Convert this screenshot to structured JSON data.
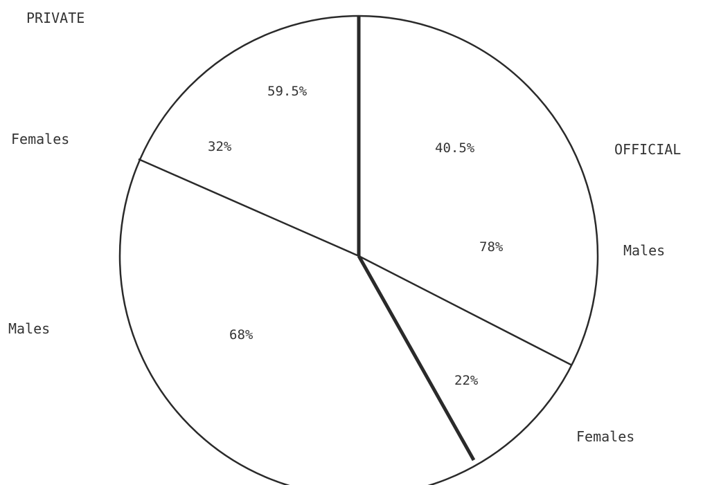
{
  "chart_data": {
    "type": "pie",
    "title": "",
    "sectors": [
      {
        "name": "OFFICIAL",
        "share_label": "40.5%",
        "value": 40.5,
        "subgroups": [
          {
            "name": "Males",
            "label": "78%",
            "value": 78
          },
          {
            "name": "Females",
            "label": "22%",
            "value": 22
          }
        ]
      },
      {
        "name": "PRIVATE",
        "share_label": "59.5%",
        "value": 59.5,
        "subgroups": [
          {
            "name": "Males",
            "label": "68%",
            "value": 68
          },
          {
            "name": "Females",
            "label": "32%",
            "value": 32
          }
        ]
      }
    ]
  },
  "colors": {
    "line": "#2a2a2a",
    "text": "#333333",
    "background": "#ffffff"
  }
}
